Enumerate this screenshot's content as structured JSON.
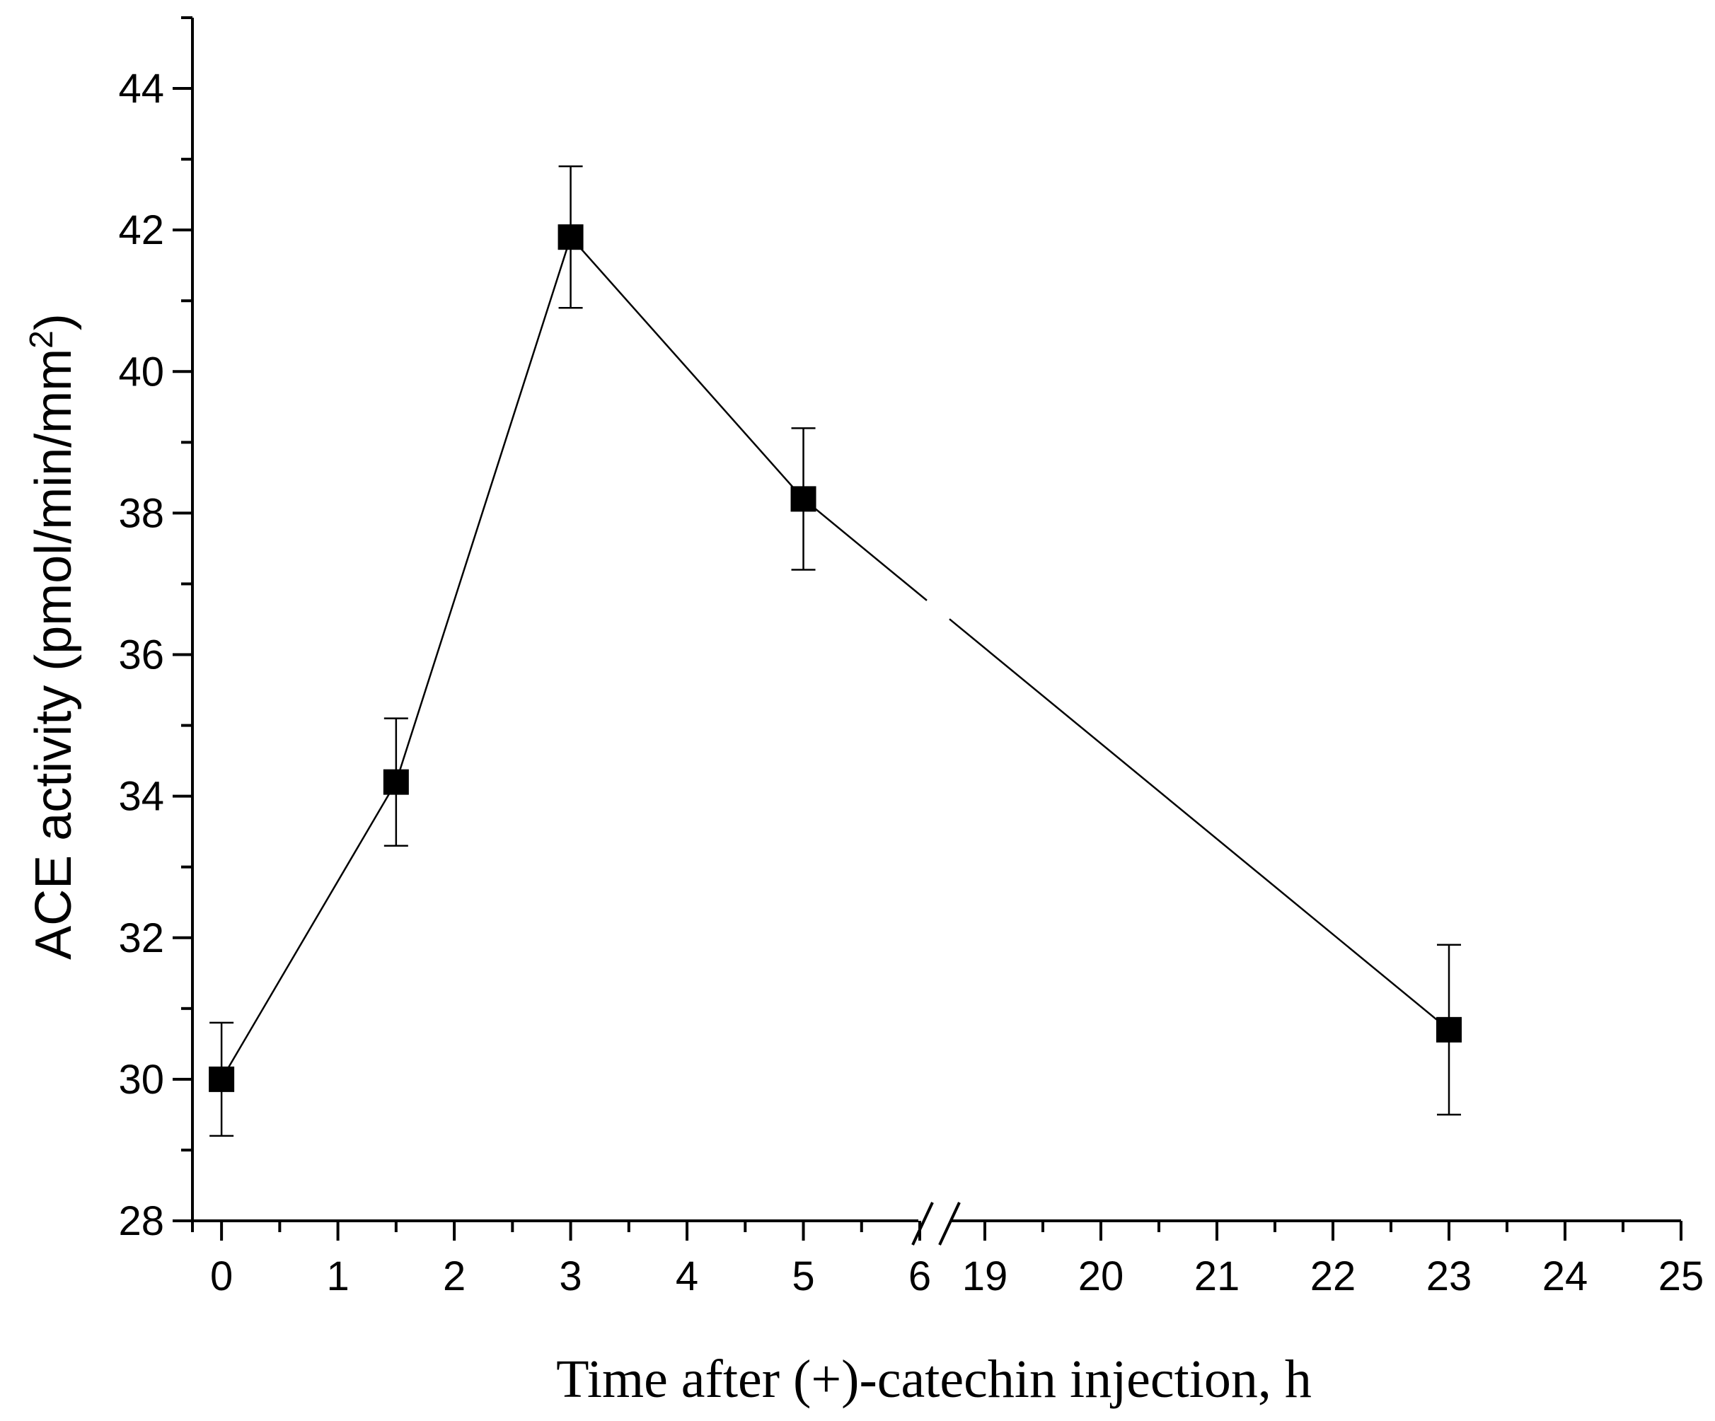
{
  "chart_data": {
    "type": "line",
    "title": "",
    "xlabel": "Time after (+)-catechin injection, h",
    "ylabel": "ACE activity (pmol/min/mm",
    "ylabel_sup": "2",
    "ylabel_close": ")",
    "ylim": [
      28,
      45
    ],
    "y_major_ticks": [
      28,
      30,
      32,
      34,
      36,
      38,
      40,
      42,
      44
    ],
    "y_tick_labels": [
      "28",
      "30",
      "32",
      "34",
      "36",
      "38",
      "40",
      "42",
      "44"
    ],
    "x_axis_break": {
      "after": 6,
      "before": 19
    },
    "x_segments": [
      {
        "range": [
          -0.25,
          6.0
        ],
        "ticks": [
          0,
          1,
          2,
          3,
          4,
          5,
          6
        ],
        "tick_labels": [
          "0",
          "1",
          "2",
          "3",
          "4",
          "5",
          "6"
        ]
      },
      {
        "range": [
          19.0,
          25.0
        ],
        "ticks": [
          19,
          20,
          21,
          22,
          23,
          24,
          25
        ],
        "tick_labels": [
          "19",
          "20",
          "21",
          "22",
          "23",
          "24",
          "25"
        ]
      }
    ],
    "series": [
      {
        "name": "ACE activity",
        "x": [
          0,
          1.5,
          3,
          5,
          23
        ],
        "y": [
          30.0,
          34.2,
          41.9,
          38.2,
          30.7
        ],
        "error": [
          0.8,
          0.9,
          1.0,
          1.0,
          1.2
        ]
      }
    ],
    "grid": false,
    "legend": "none"
  }
}
